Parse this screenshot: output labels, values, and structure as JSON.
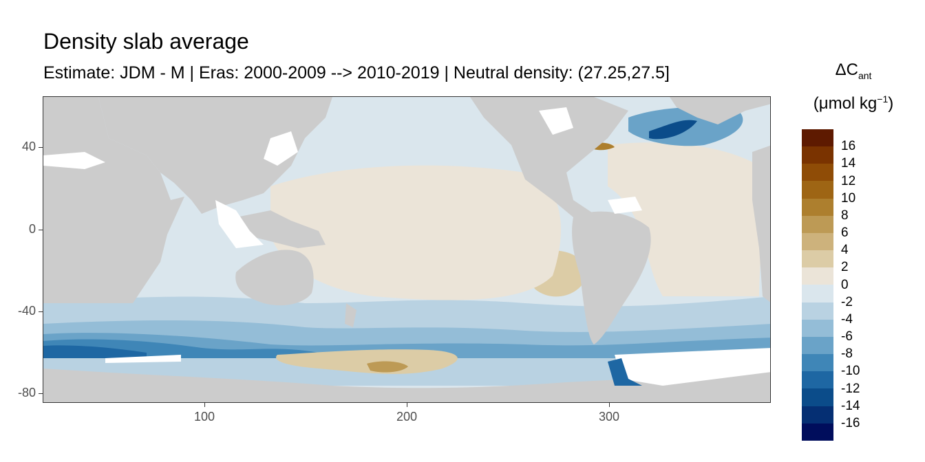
{
  "title": "Density slab average",
  "subtitle": "Estimate: JDM - M | Eras: 2000-2009 --> 2010-2019 | Neutral density: (27.25,27.5]",
  "legend": {
    "title_main": "ΔC",
    "title_sub": "ant",
    "units_pre": "(μmol kg",
    "units_sup": "−1",
    "units_post": ")",
    "labels": [
      "16",
      "14",
      "12",
      "10",
      "8",
      "6",
      "4",
      "2",
      "0",
      "-2",
      "-4",
      "-6",
      "-8",
      "-10",
      "-12",
      "-14",
      "-16"
    ],
    "colors": [
      "#5e1a00",
      "#7a3300",
      "#8f4c06",
      "#9e6514",
      "#ad7f2e",
      "#bd9a55",
      "#cdb27c",
      "#dccca6",
      "#ebe4d8",
      "#dae6ed",
      "#b9d2e2",
      "#94bdd7",
      "#6aa3c8",
      "#3f86b7",
      "#1e67a3",
      "#0b4c8a",
      "#052f73",
      "#000d5c"
    ]
  },
  "map": {
    "ocean_color": "#dae6ed",
    "land_color": "#cccccc",
    "no_data_color": "#ffffff"
  },
  "chart_data": {
    "type": "heatmap",
    "xlabel": "",
    "ylabel": "",
    "x_ticks": [
      100,
      200,
      300
    ],
    "y_ticks": [
      40,
      0,
      -40,
      -80
    ],
    "x_range": [
      20,
      380
    ],
    "y_range": [
      -85,
      65
    ],
    "color_scale_range": [
      -17,
      17
    ],
    "color_scale_step": 2
  }
}
